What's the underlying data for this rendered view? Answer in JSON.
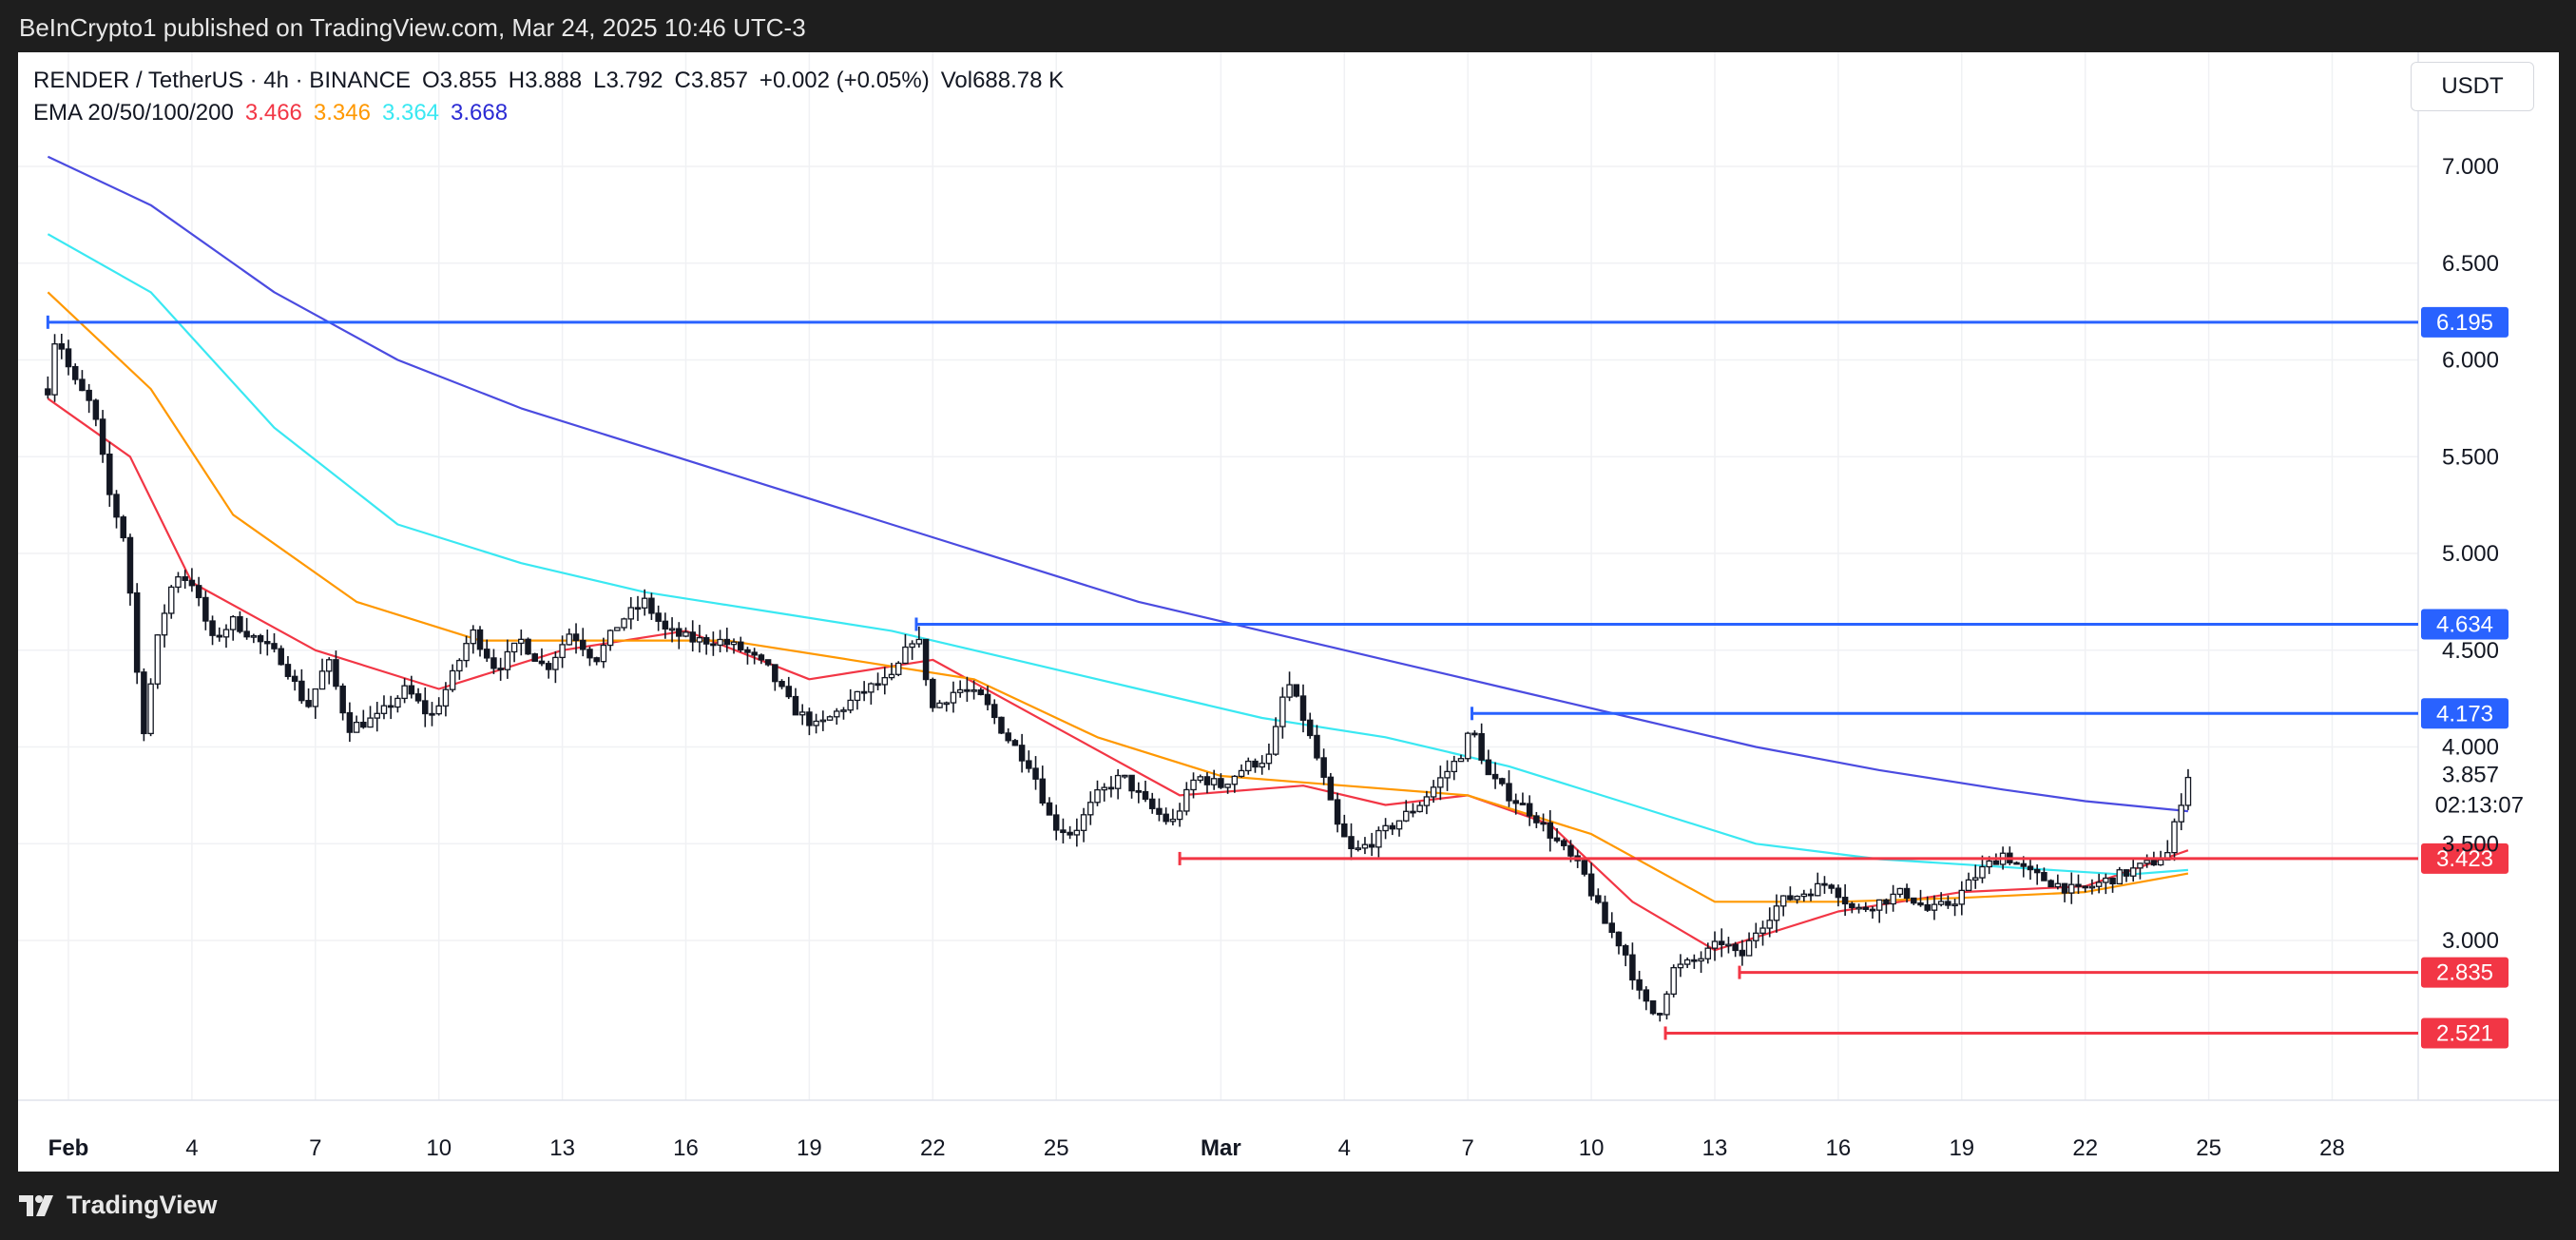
{
  "header": {
    "published_text": "BeInCrypto1 published on TradingView.com, Mar 24, 2025 10:46 UTC-3"
  },
  "symbol": {
    "pair": "RENDER / TetherUS · 4h · BINANCE",
    "open": "O3.855",
    "high": "H3.888",
    "low": "L3.792",
    "close": "C3.857",
    "change": "+0.002 (+0.05%)",
    "volume": "Vol688.78 K"
  },
  "ema_legend": {
    "label": "EMA 20/50/100/200",
    "values": [
      {
        "text": "3.466",
        "color": "#f23645"
      },
      {
        "text": "3.346",
        "color": "#ff9800"
      },
      {
        "text": "3.364",
        "color": "#3ae8f2"
      },
      {
        "text": "3.668",
        "color": "#2b2bd4"
      }
    ]
  },
  "currency_button": "USDT",
  "footer": {
    "brand": "TradingView"
  },
  "chart_data": {
    "type": "candlestick",
    "symbol": "RENDER/USDT",
    "interval": "4h",
    "y_axis_ticks": [
      {
        "label": "7.000",
        "value": 7.0
      },
      {
        "label": "6.500",
        "value": 6.5
      },
      {
        "label": "6.000",
        "value": 6.0
      },
      {
        "label": "5.500",
        "value": 5.5
      },
      {
        "label": "5.000",
        "value": 5.0
      },
      {
        "label": "4.500",
        "value": 4.5
      },
      {
        "label": "4.000",
        "value": 4.0
      },
      {
        "label": "3.500",
        "value": 3.5
      },
      {
        "label": "3.000",
        "value": 3.0
      }
    ],
    "x_axis_ticks": [
      {
        "label": "Feb",
        "day": 1
      },
      {
        "label": "4",
        "day": 4
      },
      {
        "label": "7",
        "day": 7
      },
      {
        "label": "10",
        "day": 10
      },
      {
        "label": "13",
        "day": 13
      },
      {
        "label": "16",
        "day": 16
      },
      {
        "label": "19",
        "day": 19
      },
      {
        "label": "22",
        "day": 22
      },
      {
        "label": "25",
        "day": 25
      },
      {
        "label": "Mar",
        "day": 29
      },
      {
        "label": "4",
        "day": 32
      },
      {
        "label": "7",
        "day": 35
      },
      {
        "label": "10",
        "day": 38
      },
      {
        "label": "13",
        "day": 41
      },
      {
        "label": "16",
        "day": 44
      },
      {
        "label": "19",
        "day": 47
      },
      {
        "label": "22",
        "day": 50
      },
      {
        "label": "25",
        "day": 53
      },
      {
        "label": "28",
        "day": 56
      }
    ],
    "current_price": {
      "label": "3.857",
      "value": 3.857,
      "countdown": "02:13:07"
    },
    "levels": [
      {
        "label": "6.195",
        "value": 6.195,
        "color": "#2962ff",
        "from_day": 0.5
      },
      {
        "label": "4.634",
        "value": 4.634,
        "color": "#2962ff",
        "from_day": 21.6
      },
      {
        "label": "4.173",
        "value": 4.173,
        "color": "#2962ff",
        "from_day": 35.1
      },
      {
        "label": "3.423",
        "value": 3.423,
        "color": "#f23645",
        "from_day": 28.0
      },
      {
        "label": "2.835",
        "value": 2.835,
        "color": "#f23645",
        "from_day": 41.6
      },
      {
        "label": "2.521",
        "value": 2.521,
        "color": "#f23645",
        "from_day": 39.8
      }
    ],
    "price_path": [
      [
        0.5,
        5.85
      ],
      [
        0.7,
        6.15
      ],
      [
        1.1,
        5.9
      ],
      [
        1.6,
        5.75
      ],
      [
        2.0,
        5.3
      ],
      [
        2.4,
        5.05
      ],
      [
        2.6,
        4.55
      ],
      [
        2.8,
        4.05
      ],
      [
        3.2,
        4.6
      ],
      [
        3.6,
        4.9
      ],
      [
        4.0,
        4.85
      ],
      [
        4.5,
        4.55
      ],
      [
        5.0,
        4.65
      ],
      [
        5.6,
        4.55
      ],
      [
        6.2,
        4.45
      ],
      [
        6.8,
        4.2
      ],
      [
        7.3,
        4.45
      ],
      [
        7.8,
        4.1
      ],
      [
        8.5,
        4.15
      ],
      [
        9.2,
        4.3
      ],
      [
        9.8,
        4.15
      ],
      [
        10.3,
        4.35
      ],
      [
        10.8,
        4.6
      ],
      [
        11.4,
        4.4
      ],
      [
        12.0,
        4.55
      ],
      [
        12.6,
        4.4
      ],
      [
        13.2,
        4.6
      ],
      [
        13.8,
        4.45
      ],
      [
        14.4,
        4.65
      ],
      [
        15.0,
        4.75
      ],
      [
        15.5,
        4.6
      ],
      [
        16.2,
        4.55
      ],
      [
        16.8,
        4.55
      ],
      [
        17.4,
        4.5
      ],
      [
        18.0,
        4.4
      ],
      [
        18.6,
        4.2
      ],
      [
        19.2,
        4.1
      ],
      [
        19.8,
        4.2
      ],
      [
        20.4,
        4.3
      ],
      [
        21.0,
        4.35
      ],
      [
        21.6,
        4.6
      ],
      [
        22.0,
        4.2
      ],
      [
        22.6,
        4.3
      ],
      [
        23.2,
        4.25
      ],
      [
        23.8,
        4.05
      ],
      [
        24.4,
        3.9
      ],
      [
        24.9,
        3.6
      ],
      [
        25.4,
        3.55
      ],
      [
        26.0,
        3.75
      ],
      [
        26.6,
        3.85
      ],
      [
        27.2,
        3.7
      ],
      [
        27.8,
        3.6
      ],
      [
        28.4,
        3.85
      ],
      [
        29.0,
        3.8
      ],
      [
        29.6,
        3.9
      ],
      [
        30.2,
        3.95
      ],
      [
        30.6,
        4.35
      ],
      [
        31.0,
        4.15
      ],
      [
        31.4,
        3.9
      ],
      [
        31.8,
        3.6
      ],
      [
        32.2,
        3.45
      ],
      [
        32.6,
        3.5
      ],
      [
        33.2,
        3.6
      ],
      [
        33.8,
        3.7
      ],
      [
        34.4,
        3.85
      ],
      [
        34.8,
        3.95
      ],
      [
        35.1,
        4.1
      ],
      [
        35.5,
        3.85
      ],
      [
        36.0,
        3.75
      ],
      [
        36.6,
        3.65
      ],
      [
        37.2,
        3.5
      ],
      [
        37.8,
        3.35
      ],
      [
        38.3,
        3.1
      ],
      [
        38.8,
        2.95
      ],
      [
        39.2,
        2.7
      ],
      [
        39.6,
        2.6
      ],
      [
        40.0,
        2.85
      ],
      [
        40.6,
        2.9
      ],
      [
        41.2,
        3.0
      ],
      [
        41.6,
        2.9
      ],
      [
        42.0,
        3.05
      ],
      [
        42.6,
        3.2
      ],
      [
        43.2,
        3.25
      ],
      [
        43.8,
        3.3
      ],
      [
        44.4,
        3.15
      ],
      [
        45.0,
        3.2
      ],
      [
        45.6,
        3.25
      ],
      [
        46.2,
        3.15
      ],
      [
        46.8,
        3.2
      ],
      [
        47.4,
        3.35
      ],
      [
        48.0,
        3.45
      ],
      [
        48.6,
        3.35
      ],
      [
        49.2,
        3.3
      ],
      [
        49.8,
        3.25
      ],
      [
        50.4,
        3.3
      ],
      [
        51.0,
        3.35
      ],
      [
        51.6,
        3.4
      ],
      [
        52.0,
        3.45
      ],
      [
        52.3,
        3.7
      ],
      [
        52.5,
        3.857
      ]
    ],
    "ema_series": [
      {
        "name": "EMA 20",
        "color": "#f23645",
        "points": [
          [
            0.5,
            5.8
          ],
          [
            2.5,
            5.5
          ],
          [
            4.0,
            4.85
          ],
          [
            7.0,
            4.5
          ],
          [
            10,
            4.3
          ],
          [
            13,
            4.5
          ],
          [
            16,
            4.6
          ],
          [
            19,
            4.35
          ],
          [
            22,
            4.45
          ],
          [
            25,
            4.1
          ],
          [
            28,
            3.75
          ],
          [
            31,
            3.8
          ],
          [
            33,
            3.7
          ],
          [
            35,
            3.75
          ],
          [
            37,
            3.6
          ],
          [
            39,
            3.2
          ],
          [
            41,
            2.95
          ],
          [
            44,
            3.15
          ],
          [
            47,
            3.25
          ],
          [
            50,
            3.28
          ],
          [
            52.5,
            3.466
          ]
        ]
      },
      {
        "name": "EMA 50",
        "color": "#ff9800",
        "points": [
          [
            0.5,
            6.35
          ],
          [
            3.0,
            5.85
          ],
          [
            5.0,
            5.2
          ],
          [
            8.0,
            4.75
          ],
          [
            11,
            4.55
          ],
          [
            14,
            4.55
          ],
          [
            17,
            4.55
          ],
          [
            20,
            4.45
          ],
          [
            23,
            4.35
          ],
          [
            26,
            4.05
          ],
          [
            29,
            3.85
          ],
          [
            32,
            3.8
          ],
          [
            35,
            3.75
          ],
          [
            38,
            3.55
          ],
          [
            41,
            3.2
          ],
          [
            44,
            3.2
          ],
          [
            47,
            3.22
          ],
          [
            50,
            3.25
          ],
          [
            52.5,
            3.346
          ]
        ]
      },
      {
        "name": "EMA 100",
        "color": "#3ae8f2",
        "points": [
          [
            0.5,
            6.65
          ],
          [
            3.0,
            6.35
          ],
          [
            6.0,
            5.65
          ],
          [
            9.0,
            5.15
          ],
          [
            12,
            4.95
          ],
          [
            15,
            4.8
          ],
          [
            18,
            4.7
          ],
          [
            21,
            4.6
          ],
          [
            24,
            4.45
          ],
          [
            27,
            4.3
          ],
          [
            30,
            4.15
          ],
          [
            33,
            4.05
          ],
          [
            36,
            3.9
          ],
          [
            39,
            3.7
          ],
          [
            42,
            3.5
          ],
          [
            45,
            3.42
          ],
          [
            48,
            3.38
          ],
          [
            51,
            3.34
          ],
          [
            52.5,
            3.364
          ]
        ]
      },
      {
        "name": "EMA 200",
        "color": "#4b4be0",
        "points": [
          [
            0.5,
            7.05
          ],
          [
            3.0,
            6.8
          ],
          [
            6.0,
            6.35
          ],
          [
            9.0,
            6.0
          ],
          [
            12,
            5.75
          ],
          [
            15,
            5.55
          ],
          [
            18,
            5.35
          ],
          [
            21,
            5.15
          ],
          [
            24,
            4.95
          ],
          [
            27,
            4.75
          ],
          [
            30,
            4.6
          ],
          [
            33,
            4.45
          ],
          [
            36,
            4.3
          ],
          [
            39,
            4.15
          ],
          [
            42,
            4.0
          ],
          [
            45,
            3.88
          ],
          [
            48,
            3.78
          ],
          [
            50,
            3.72
          ],
          [
            52.5,
            3.668
          ]
        ]
      }
    ]
  }
}
